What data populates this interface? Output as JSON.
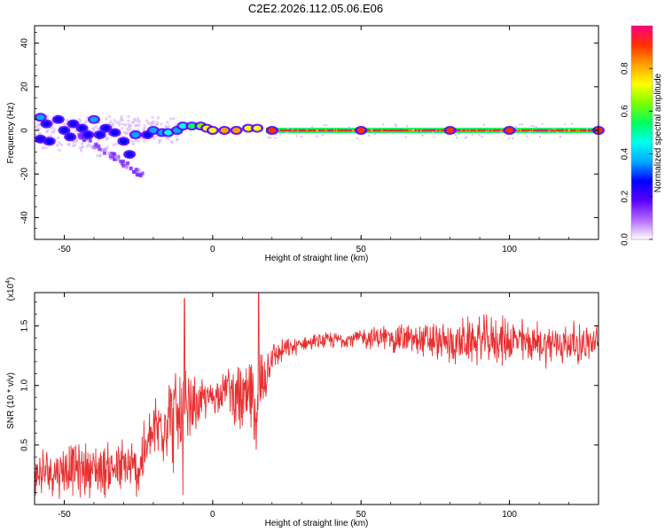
{
  "title": "C2E2.2026.112.05.06.E06",
  "chart_data": [
    {
      "type": "heatmap",
      "title": "C2E2.2026.112.05.06.E06",
      "xlabel": "Height of straight line (km)",
      "ylabel": "Frequency (Hz)",
      "xlim": [
        -60,
        130
      ],
      "ylim": [
        -50,
        48
      ],
      "xticks": [
        -50,
        0,
        50,
        100
      ],
      "yticks": [
        -40,
        -20,
        0,
        20,
        40
      ],
      "xtick_labels": [
        "-50",
        "0",
        "50",
        "100"
      ],
      "ytick_labels": [
        "-40",
        "-20",
        "0",
        "20",
        "40"
      ],
      "description_points": [
        {
          "x": -58,
          "y": 6,
          "amp": 0.35
        },
        {
          "x": -56,
          "y": 3,
          "amp": 0.3
        },
        {
          "x": -58,
          "y": -4,
          "amp": 0.3
        },
        {
          "x": -55,
          "y": -5,
          "amp": 0.25
        },
        {
          "x": -52,
          "y": 5,
          "amp": 0.3
        },
        {
          "x": -50,
          "y": 0,
          "amp": 0.3
        },
        {
          "x": -48,
          "y": -3,
          "amp": 0.25
        },
        {
          "x": -47,
          "y": 3,
          "amp": 0.3
        },
        {
          "x": -44,
          "y": 1,
          "amp": 0.3
        },
        {
          "x": -42,
          "y": -2,
          "amp": 0.25
        },
        {
          "x": -40,
          "y": 5,
          "amp": 0.35
        },
        {
          "x": -38,
          "y": -2,
          "amp": 0.3
        },
        {
          "x": -36,
          "y": 1,
          "amp": 0.3
        },
        {
          "x": -33,
          "y": -1,
          "amp": 0.3
        },
        {
          "x": -30,
          "y": -5,
          "amp": 0.25
        },
        {
          "x": -28,
          "y": -11,
          "amp": 0.3
        },
        {
          "x": -26,
          "y": -2,
          "amp": 0.35
        },
        {
          "x": -22,
          "y": -2,
          "amp": 0.3
        },
        {
          "x": -20,
          "y": 0,
          "amp": 0.35
        },
        {
          "x": -17,
          "y": -1,
          "amp": 0.4
        },
        {
          "x": -15,
          "y": -1,
          "amp": 0.45
        },
        {
          "x": -12,
          "y": 0,
          "amp": 0.4
        },
        {
          "x": -10,
          "y": 2,
          "amp": 0.45
        },
        {
          "x": -7,
          "y": 2,
          "amp": 0.55
        },
        {
          "x": -4,
          "y": 2,
          "amp": 0.6
        },
        {
          "x": -2,
          "y": 1,
          "amp": 0.7
        },
        {
          "x": 0,
          "y": 0,
          "amp": 0.75
        },
        {
          "x": 4,
          "y": 0,
          "amp": 0.8
        },
        {
          "x": 8,
          "y": 0,
          "amp": 0.8
        },
        {
          "x": 12,
          "y": 1,
          "amp": 0.7
        },
        {
          "x": 15,
          "y": 1,
          "amp": 0.75
        },
        {
          "x": 20,
          "y": 0,
          "amp": 0.95
        },
        {
          "x": 50,
          "y": 0,
          "amp": 0.95
        },
        {
          "x": 80,
          "y": 0,
          "amp": 0.95
        },
        {
          "x": 100,
          "y": 0,
          "amp": 0.9
        },
        {
          "x": 130,
          "y": 0,
          "amp": 0.95
        }
      ]
    },
    {
      "type": "line",
      "xlabel": "Height of straight line (km)",
      "ylabel": "SNR (10 * v/v)",
      "y_multiplier_label": "(x10",
      "y_multiplier_exp": "4",
      "y_multiplier_close": ")",
      "xlim": [
        -60,
        130
      ],
      "ylim": [
        0,
        1.78
      ],
      "xticks": [
        -50,
        0,
        50,
        100
      ],
      "yticks": [
        0.5,
        1.0,
        1.5
      ],
      "xtick_labels": [
        "-50",
        "0",
        "50",
        "100"
      ],
      "ytick_labels": [
        "0.5",
        "1.0",
        "1.5"
      ],
      "series": [
        {
          "name": "SNR",
          "color": "#e83030",
          "envelope_x": [
            -60,
            -50,
            -40,
            -30,
            -25,
            -20,
            -15,
            -10,
            -5,
            0,
            5,
            10,
            15,
            20,
            30,
            40,
            50,
            60,
            70,
            80,
            90,
            100,
            110,
            120,
            130
          ],
          "envelope_mean": [
            0.25,
            0.3,
            0.3,
            0.3,
            0.3,
            0.6,
            0.75,
            0.7,
            0.85,
            0.9,
            1.0,
            0.85,
            0.9,
            1.25,
            1.35,
            1.38,
            1.4,
            1.4,
            1.38,
            1.35,
            1.38,
            1.38,
            1.35,
            1.35,
            1.35
          ],
          "envelope_spread": [
            0.2,
            0.22,
            0.22,
            0.25,
            0.25,
            0.3,
            0.4,
            0.45,
            0.2,
            0.15,
            0.15,
            0.35,
            0.4,
            0.12,
            0.06,
            0.07,
            0.08,
            0.12,
            0.15,
            0.18,
            0.2,
            0.2,
            0.18,
            0.18,
            0.15
          ],
          "spikes": [
            {
              "x": -9.5,
              "y": 1.73
            },
            {
              "x": 15.5,
              "y": 1.78
            },
            {
              "x": 14,
              "y": 0.55
            },
            {
              "x": -10,
              "y": 0.08
            }
          ]
        }
      ]
    }
  ],
  "colorbar": {
    "label": "Normalized spectral amplitude",
    "range": [
      0,
      1
    ],
    "ticks": [
      0.0,
      0.2,
      0.4,
      0.6,
      0.8
    ],
    "tick_labels": [
      "0.0",
      "0.2",
      "0.4",
      "0.6",
      "0.8"
    ],
    "colors": [
      "#ffffff",
      "#b36bff",
      "#5a00ff",
      "#0000ff",
      "#00aaff",
      "#00ffee",
      "#00ff60",
      "#7aff00",
      "#ffff00",
      "#ffa000",
      "#ff3000",
      "#ff0080"
    ]
  }
}
